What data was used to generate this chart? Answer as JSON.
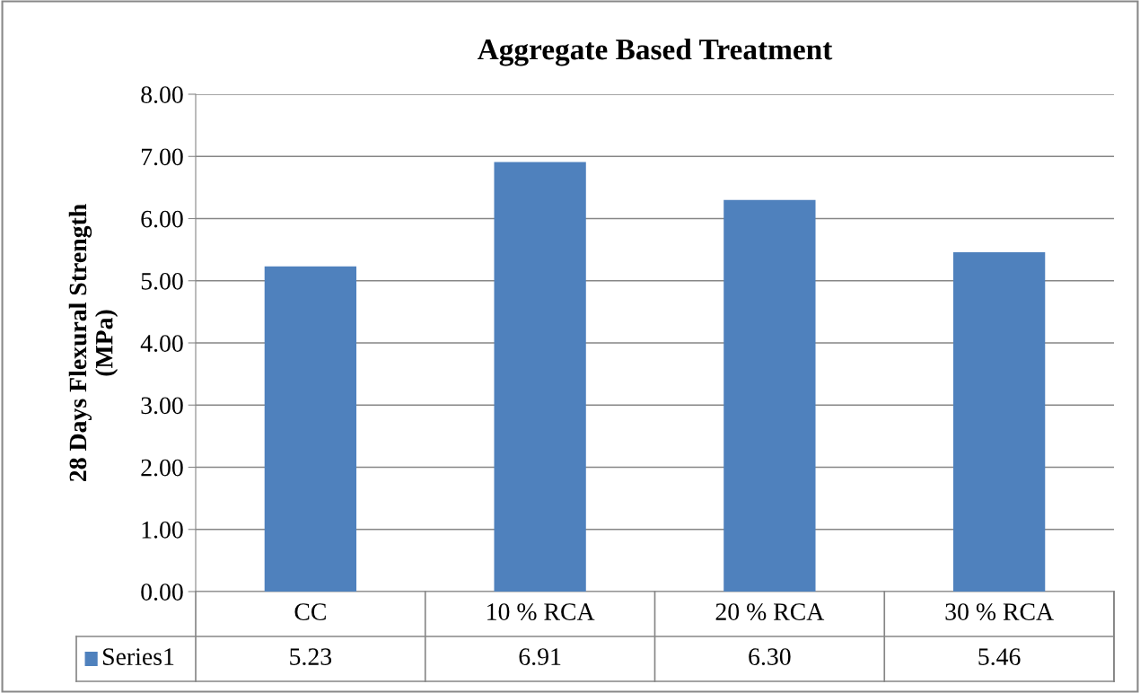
{
  "chart_data": {
    "type": "bar",
    "title": "Aggregate Based Treatment",
    "ylabel": "28 Days Flexural Strength\n(MPa)",
    "categories": [
      "CC",
      "10 % RCA",
      "20 % RCA",
      "30 % RCA"
    ],
    "series": [
      {
        "name": "Series1",
        "color": "#4f81bd",
        "values": [
          5.23,
          6.91,
          6.3,
          5.46
        ],
        "value_labels": [
          "5.23",
          "6.91",
          "6.30",
          "5.46"
        ]
      }
    ],
    "ylim": [
      0,
      8
    ],
    "yticks": [
      {
        "value": 0,
        "label": "0.00"
      },
      {
        "value": 1,
        "label": "1.00"
      },
      {
        "value": 2,
        "label": "2.00"
      },
      {
        "value": 3,
        "label": "3.00"
      },
      {
        "value": 4,
        "label": "4.00"
      },
      {
        "value": 5,
        "label": "5.00"
      },
      {
        "value": 6,
        "label": "6.00"
      },
      {
        "value": 7,
        "label": "7.00"
      },
      {
        "value": 8,
        "label": "8.00"
      }
    ],
    "grid": "y"
  }
}
